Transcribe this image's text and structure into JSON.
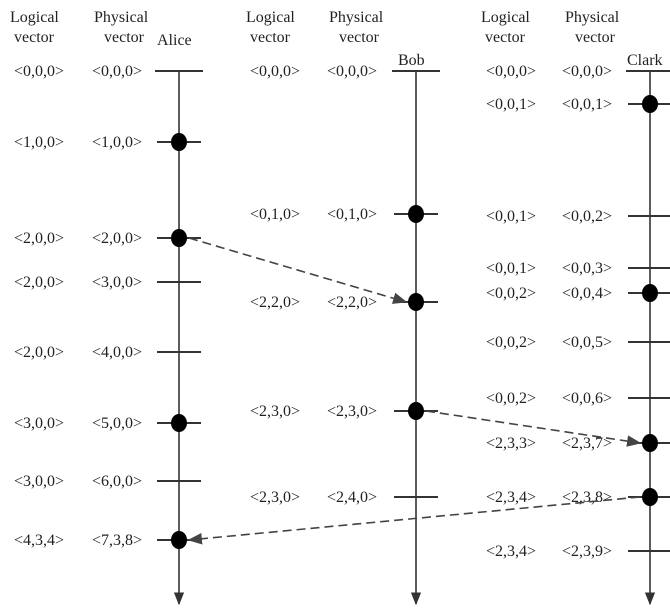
{
  "headers": {
    "logical": [
      "Logical",
      "vector"
    ],
    "physical": [
      "Physical",
      "vector"
    ]
  },
  "colors": {
    "line": "#333333",
    "event": "#000000",
    "message": "#444444"
  },
  "processes": [
    {
      "name": "Alice",
      "events": [
        {
          "logical": "<0,0,0>",
          "physical": "<0,0,0>",
          "kind": "start"
        },
        {
          "logical": "<1,0,0>",
          "physical": "<1,0,0>",
          "kind": "dot"
        },
        {
          "logical": "<2,0,0>",
          "physical": "<2,0,0>",
          "kind": "dot"
        },
        {
          "logical": "<2,0,0>",
          "physical": "<3,0,0>",
          "kind": "tick"
        },
        {
          "logical": "<2,0,0>",
          "physical": "<4,0,0>",
          "kind": "tick"
        },
        {
          "logical": "<3,0,0>",
          "physical": "<5,0,0>",
          "kind": "dot"
        },
        {
          "logical": "<3,0,0>",
          "physical": "<6,0,0>",
          "kind": "tick"
        },
        {
          "logical": "<4,3,4>",
          "physical": "<7,3,8>",
          "kind": "dot"
        }
      ]
    },
    {
      "name": "Bob",
      "events": [
        {
          "logical": "<0,0,0>",
          "physical": "<0,0,0>",
          "kind": "start"
        },
        {
          "logical": "<0,1,0>",
          "physical": "<0,1,0>",
          "kind": "dot"
        },
        {
          "logical": "<2,2,0>",
          "physical": "<2,2,0>",
          "kind": "dot"
        },
        {
          "logical": "<2,3,0>",
          "physical": "<2,3,0>",
          "kind": "dot"
        },
        {
          "logical": "<2,3,0>",
          "physical": "<2,4,0>",
          "kind": "tick"
        }
      ]
    },
    {
      "name": "Clark",
      "events": [
        {
          "logical": "<0,0,0>",
          "physical": "<0,0,0>",
          "kind": "start"
        },
        {
          "logical": "<0,0,1>",
          "physical": "<0,0,1>",
          "kind": "dot"
        },
        {
          "logical": "<0,0,1>",
          "physical": "<0,0,2>",
          "kind": "tick"
        },
        {
          "logical": "<0,0,1>",
          "physical": "<0,0,3>",
          "kind": "tick"
        },
        {
          "logical": "<0,0,2>",
          "physical": "<0,0,4>",
          "kind": "dot"
        },
        {
          "logical": "<0,0,2>",
          "physical": "<0,0,5>",
          "kind": "tick"
        },
        {
          "logical": "<0,0,2>",
          "physical": "<0,0,6>",
          "kind": "tick"
        },
        {
          "logical": "<2,3,3>",
          "physical": "<2,3,7>",
          "kind": "dot"
        },
        {
          "logical": "<2,3,4>",
          "physical": "<2,3,8>",
          "kind": "dot"
        },
        {
          "logical": "<2,3,4>",
          "physical": "<2,3,9>",
          "kind": "tick"
        }
      ]
    }
  ],
  "messages": [
    {
      "from": "Alice",
      "from_event": 2,
      "to": "Bob",
      "to_event": 2
    },
    {
      "from": "Bob",
      "from_event": 3,
      "to": "Clark",
      "to_event": 7
    },
    {
      "from": "Clark",
      "from_event": 8,
      "to": "Alice",
      "to_event": 7
    }
  ]
}
